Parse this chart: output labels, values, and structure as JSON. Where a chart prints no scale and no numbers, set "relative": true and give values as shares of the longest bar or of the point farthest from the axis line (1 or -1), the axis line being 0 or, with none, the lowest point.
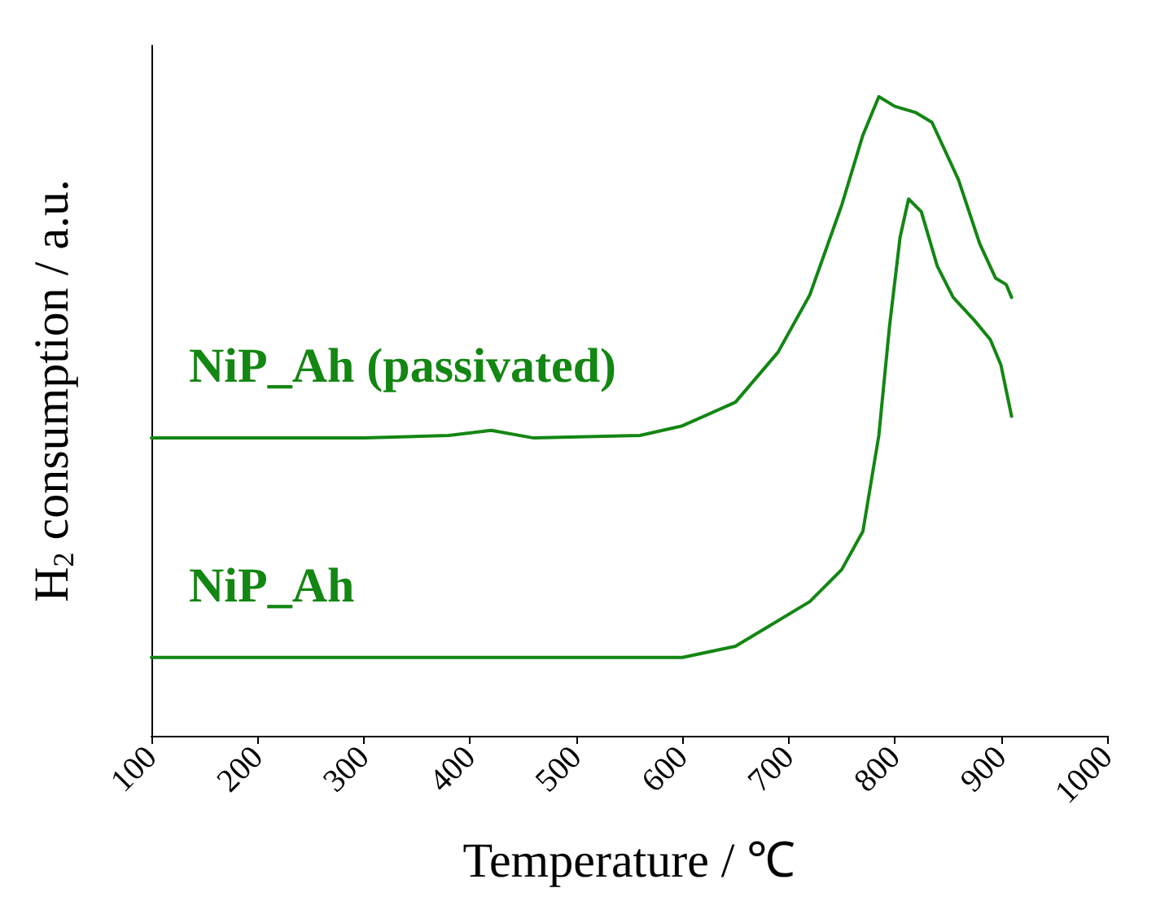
{
  "chart_data": {
    "type": "line",
    "relative": true,
    "xlabel": "Temperature / ℃",
    "ylabel": "H$_{2}$ consumption / a.u.",
    "xlim": [
      100,
      1000
    ],
    "xticks": [
      100,
      200,
      300,
      400,
      500,
      600,
      700,
      800,
      900,
      1000
    ],
    "grid": false,
    "legend": false,
    "marker": "none",
    "line_style": "solid",
    "series": [
      {
        "name": "NiP_Ah (passivated)",
        "color": "#138613",
        "x": [
          100,
          300,
          380,
          420,
          460,
          560,
          600,
          650,
          690,
          720,
          750,
          770,
          785,
          800,
          820,
          835,
          860,
          880,
          895,
          905,
          910
        ],
        "values": [
          0.466,
          0.466,
          0.47,
          0.478,
          0.466,
          0.47,
          0.485,
          0.522,
          0.6,
          0.69,
          0.83,
          0.94,
          1.0,
          0.985,
          0.975,
          0.96,
          0.87,
          0.77,
          0.716,
          0.706,
          0.686
        ]
      },
      {
        "name": "NiP_Ah",
        "color": "#138613",
        "x": [
          100,
          600,
          650,
          680,
          720,
          750,
          770,
          785,
          795,
          805,
          813,
          825,
          840,
          855,
          875,
          890,
          900,
          910
        ],
        "values": [
          0.1225,
          0.1225,
          0.14,
          0.17,
          0.21,
          0.26,
          0.32,
          0.47,
          0.64,
          0.78,
          0.84,
          0.82,
          0.735,
          0.686,
          0.65,
          0.62,
          0.58,
          0.5
        ]
      }
    ]
  }
}
